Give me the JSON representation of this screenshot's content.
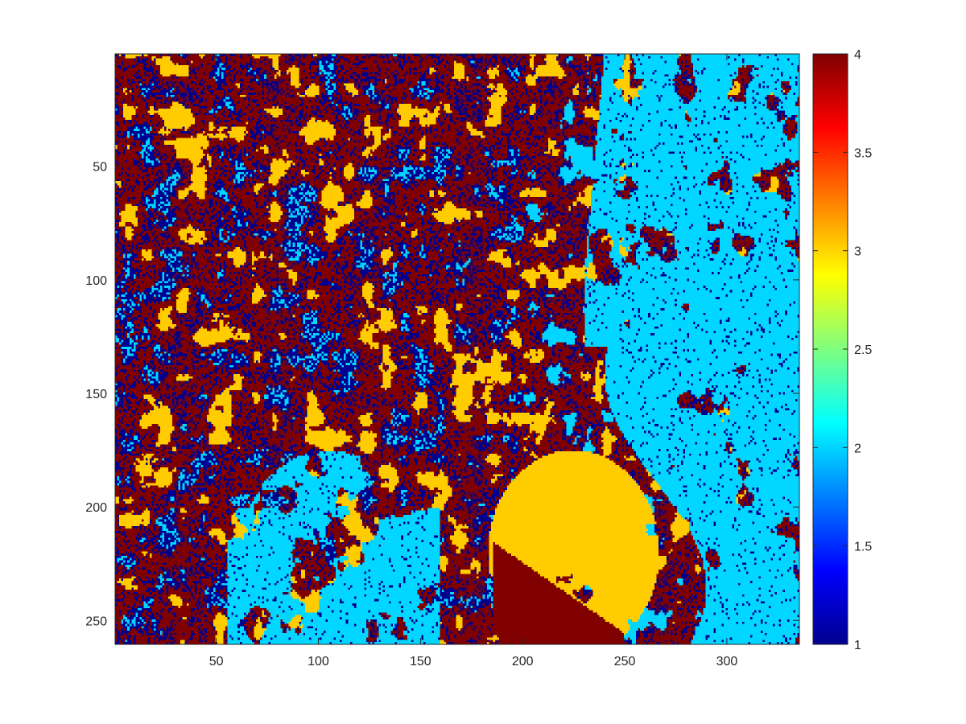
{
  "chart_data": {
    "type": "heatmap",
    "title": "",
    "xlabel": "",
    "ylabel": "",
    "xlim": [
      0.5,
      335.5
    ],
    "ylim": [
      260.5,
      0.5
    ],
    "y_direction": "reverse",
    "grid": false,
    "x_ticks": [
      50,
      100,
      150,
      200,
      250,
      300
    ],
    "x_tick_labels": [
      "50",
      "100",
      "150",
      "200",
      "250",
      "300"
    ],
    "y_ticks": [
      50,
      100,
      150,
      200,
      250
    ],
    "y_tick_labels": [
      "50",
      "100",
      "150",
      "200",
      "250"
    ],
    "grid_size": {
      "columns": 335,
      "rows": 260
    },
    "class_values": [
      1,
      2,
      3,
      4
    ],
    "class_colors": {
      "1": "#00008f",
      "2": "#00d6ff",
      "3": "#ffcc00",
      "4": "#800000"
    },
    "regions_by_class": {
      "2": "upper-right and right side, large patch bottom-left near rows 180-260, columns 60-150",
      "3": "scattered patches throughout; large patch bottom-center near rows 170-260, columns 170-260",
      "4": "dense central band running from upper-middle to bottom-center, rows 10-260, columns 40-250",
      "1": "fine speckle across left and center, columns 10-200"
    },
    "colorbar": {
      "limits": [
        1,
        4
      ],
      "ticks": [
        1,
        1.5,
        2,
        2.5,
        3,
        3.5,
        4
      ],
      "tick_labels": [
        "1",
        "1.5",
        "2",
        "2.5",
        "3",
        "3.5",
        "4"
      ],
      "colormap": "jet",
      "placement": "right"
    }
  }
}
